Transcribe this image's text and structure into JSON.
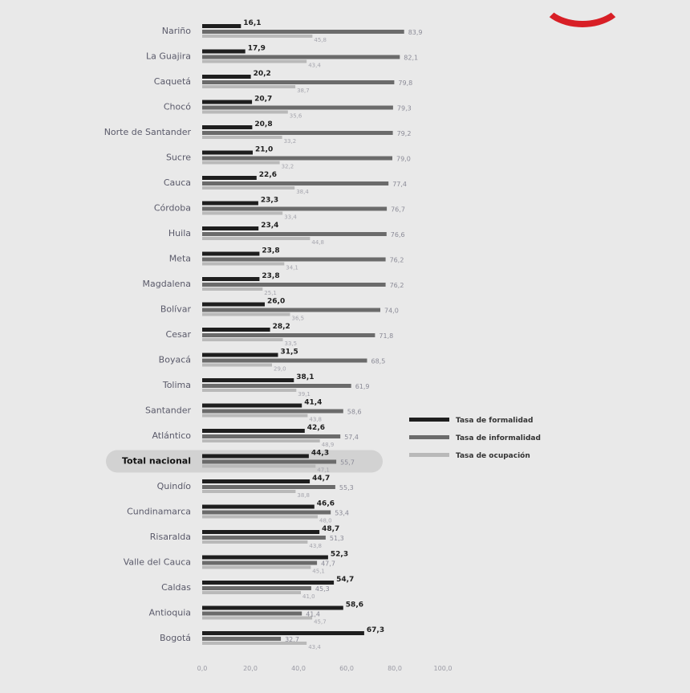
{
  "chart_data": {
    "type": "bar",
    "orientation": "horizontal",
    "title": "",
    "xlabel": "",
    "ylabel": "",
    "xlim": [
      0,
      100
    ],
    "x_ticks": [
      "0,0",
      "20,0",
      "40,0",
      "60,0",
      "80,0",
      "100,0"
    ],
    "grid": false,
    "legend_position": "right",
    "highlight_category": "Total nacional",
    "categories": [
      "Nariño",
      "La Guajira",
      "Caquetá",
      "Chocó",
      "Norte de Santander",
      "Sucre",
      "Cauca",
      "Córdoba",
      "Huila",
      "Meta",
      "Magdalena",
      "Bolívar",
      "Cesar",
      "Boyacá",
      "Tolima",
      "Santander",
      "Atlántico",
      "Total nacional",
      "Quindío",
      "Cundinamarca",
      "Risaralda",
      "Valle del Cauca",
      "Caldas",
      "Antioquia",
      "Bogotá"
    ],
    "series": [
      {
        "name": "Tasa de formalidad",
        "color": "#1e1e1e",
        "values": [
          16.1,
          17.9,
          20.2,
          20.7,
          20.8,
          21.0,
          22.6,
          23.3,
          23.4,
          23.8,
          23.8,
          26.0,
          28.2,
          31.5,
          38.1,
          41.4,
          42.6,
          44.3,
          44.7,
          46.6,
          48.7,
          52.3,
          54.7,
          58.6,
          67.3
        ],
        "labels": [
          "16,1",
          "17,9",
          "20,2",
          "20,7",
          "20,8",
          "21,0",
          "22,6",
          "23,3",
          "23,4",
          "23,8",
          "23,8",
          "26,0",
          "28,2",
          "31,5",
          "38,1",
          "41,4",
          "42,6",
          "44,3",
          "44,7",
          "46,6",
          "48,7",
          "52,3",
          "54,7",
          "58,6",
          "67,3"
        ]
      },
      {
        "name": "Tasa de informalidad",
        "color": "#6b6b6b",
        "values": [
          83.9,
          82.1,
          79.8,
          79.3,
          79.2,
          79.0,
          77.4,
          76.7,
          76.6,
          76.2,
          76.2,
          74.0,
          71.8,
          68.5,
          61.9,
          58.6,
          57.4,
          55.7,
          55.3,
          53.4,
          51.3,
          47.7,
          45.3,
          41.4,
          32.7
        ],
        "labels": [
          "83,9",
          "82,1",
          "79,8",
          "79,3",
          "79,2",
          "79,0",
          "77,4",
          "76,7",
          "76,6",
          "76,2",
          "76,2",
          "74,0",
          "71,8",
          "68,5",
          "61,9",
          "58,6",
          "57,4",
          "55,7",
          "55,3",
          "53,4",
          "51,3",
          "47,7",
          "45,3",
          "41,4",
          "32,7"
        ]
      },
      {
        "name": "Tasa de ocupación",
        "color": "#b9b9b9",
        "values": [
          45.8,
          43.4,
          38.7,
          35.6,
          33.2,
          32.2,
          38.4,
          33.4,
          44.8,
          34.1,
          25.1,
          36.5,
          33.5,
          29.0,
          39.1,
          43.8,
          48.9,
          47.1,
          38.8,
          48.0,
          43.8,
          45.1,
          41.0,
          45.7,
          43.4
        ],
        "labels": [
          "45,8",
          "43,4",
          "38,7",
          "35,6",
          "33,2",
          "32,2",
          "38,4",
          "33,4",
          "44,8",
          "34,1",
          "25,1",
          "36,5",
          "33,5",
          "29,0",
          "39,1",
          "43,8",
          "48,9",
          "47,1",
          "38,8",
          "48,0",
          "43,8",
          "45,1",
          "41,0",
          "45,7",
          "43,4"
        ]
      }
    ]
  }
}
